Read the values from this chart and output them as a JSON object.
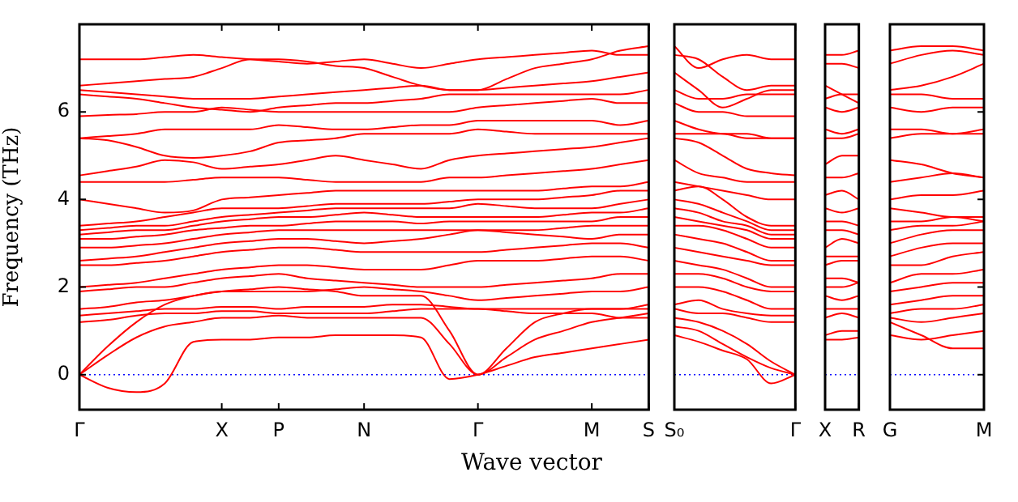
{
  "chart_data": [
    {
      "type": "line",
      "color": "#ff0000",
      "ylabel": "Frequency (THz)",
      "xlabel": "Wave vector",
      "categories": [
        "Γ",
        null,
        null,
        null,
        null,
        "X",
        null,
        "P",
        null,
        null,
        "N",
        null,
        null,
        null,
        "Γ",
        null,
        null,
        null,
        "M",
        null,
        "S"
      ],
      "ylim": [
        -0.8,
        8.0
      ],
      "yticks": [
        0,
        2,
        4,
        6
      ],
      "ref_lines": [
        {
          "axis": "y",
          "value": 0,
          "color": "#0000ff",
          "line_style": "dotted"
        }
      ],
      "series": [
        {
          "values": [
            0,
            -0.3,
            -0.4,
            -0.2,
            0.75,
            0.8,
            0.8,
            0.85,
            0.85,
            0.9,
            0.9,
            0.9,
            0.85,
            -0.1,
            0,
            0.2,
            0.4,
            0.5,
            0.6,
            0.7,
            0.8
          ]
        },
        {
          "values": [
            0,
            0.45,
            0.85,
            1.1,
            1.2,
            1.3,
            1.3,
            1.35,
            1.3,
            1.3,
            1.3,
            1.3,
            1.3,
            0.7,
            0,
            0.4,
            0.8,
            1.0,
            1.2,
            1.3,
            1.4
          ]
        },
        {
          "values": [
            0,
            0.65,
            1.2,
            1.6,
            1.8,
            1.9,
            1.95,
            2.0,
            1.95,
            1.9,
            1.8,
            1.8,
            1.8,
            1.0,
            0,
            0.6,
            1.2,
            1.4,
            1.5,
            1.5,
            1.6
          ]
        },
        {
          "values": [
            1.2,
            1.25,
            1.35,
            1.4,
            1.4,
            1.45,
            1.45,
            1.4,
            1.4,
            1.4,
            1.4,
            1.45,
            1.5,
            1.5,
            1.5,
            1.45,
            1.4,
            1.4,
            1.4,
            1.3,
            1.3
          ]
        },
        {
          "values": [
            1.35,
            1.4,
            1.45,
            1.5,
            1.5,
            1.55,
            1.55,
            1.5,
            1.55,
            1.55,
            1.55,
            1.6,
            1.6,
            1.55,
            1.5,
            1.5,
            1.5,
            1.5,
            1.5,
            1.5,
            1.5
          ]
        },
        {
          "values": [
            1.5,
            1.55,
            1.65,
            1.7,
            1.8,
            1.9,
            1.9,
            1.9,
            1.9,
            1.95,
            2.0,
            1.95,
            1.9,
            1.8,
            1.7,
            1.75,
            1.8,
            1.85,
            1.9,
            1.9,
            2.0
          ]
        },
        {
          "values": [
            1.9,
            1.95,
            2.0,
            2.0,
            2.1,
            2.2,
            2.25,
            2.3,
            2.2,
            2.15,
            2.1,
            2.05,
            2.0,
            2.0,
            2.0,
            2.05,
            2.1,
            2.15,
            2.2,
            2.3,
            2.3
          ]
        },
        {
          "values": [
            2.0,
            2.05,
            2.1,
            2.2,
            2.3,
            2.4,
            2.45,
            2.5,
            2.5,
            2.45,
            2.4,
            2.4,
            2.4,
            2.5,
            2.6,
            2.6,
            2.6,
            2.65,
            2.7,
            2.7,
            2.6
          ]
        },
        {
          "values": [
            2.5,
            2.5,
            2.55,
            2.6,
            2.7,
            2.8,
            2.85,
            2.9,
            2.9,
            2.85,
            2.8,
            2.8,
            2.8,
            2.8,
            2.8,
            2.85,
            2.9,
            2.95,
            3.0,
            3.0,
            2.9
          ]
        },
        {
          "values": [
            2.6,
            2.65,
            2.7,
            2.8,
            2.9,
            3.0,
            3.05,
            3.1,
            3.1,
            3.05,
            3.0,
            3.05,
            3.1,
            3.2,
            3.3,
            3.25,
            3.2,
            3.15,
            3.1,
            3.2,
            3.2
          ]
        },
        {
          "values": [
            2.9,
            2.9,
            2.95,
            3.0,
            3.1,
            3.2,
            3.25,
            3.3,
            3.3,
            3.3,
            3.3,
            3.3,
            3.3,
            3.3,
            3.3,
            3.3,
            3.3,
            3.35,
            3.4,
            3.4,
            3.4
          ]
        },
        {
          "values": [
            3.1,
            3.1,
            3.15,
            3.2,
            3.3,
            3.35,
            3.4,
            3.4,
            3.45,
            3.5,
            3.5,
            3.5,
            3.45,
            3.5,
            3.5,
            3.5,
            3.5,
            3.5,
            3.5,
            3.6,
            3.6
          ]
        },
        {
          "values": [
            3.2,
            3.25,
            3.3,
            3.3,
            3.4,
            3.5,
            3.55,
            3.6,
            3.6,
            3.65,
            3.7,
            3.65,
            3.6,
            3.6,
            3.6,
            3.6,
            3.6,
            3.65,
            3.7,
            3.7,
            3.8
          ]
        },
        {
          "values": [
            3.3,
            3.35,
            3.4,
            3.4,
            3.5,
            3.6,
            3.65,
            3.7,
            3.75,
            3.8,
            3.8,
            3.8,
            3.8,
            3.8,
            3.9,
            3.85,
            3.8,
            3.8,
            3.8,
            3.9,
            4.0
          ]
        },
        {
          "values": [
            3.4,
            3.45,
            3.5,
            3.6,
            3.7,
            3.8,
            3.8,
            3.8,
            3.85,
            3.9,
            3.9,
            3.9,
            3.9,
            3.95,
            4.0,
            4.0,
            4.0,
            4.05,
            4.1,
            4.2,
            4.2
          ]
        },
        {
          "values": [
            4.0,
            3.9,
            3.8,
            3.7,
            3.75,
            4.0,
            4.05,
            4.1,
            4.15,
            4.2,
            4.2,
            4.2,
            4.2,
            4.2,
            4.2,
            4.2,
            4.2,
            4.25,
            4.3,
            4.3,
            4.4
          ]
        },
        {
          "values": [
            4.4,
            4.4,
            4.4,
            4.4,
            4.45,
            4.5,
            4.5,
            4.5,
            4.45,
            4.4,
            4.4,
            4.4,
            4.4,
            4.5,
            4.5,
            4.55,
            4.6,
            4.65,
            4.7,
            4.8,
            4.9
          ]
        },
        {
          "values": [
            4.55,
            4.65,
            4.75,
            4.9,
            4.85,
            4.7,
            4.75,
            4.8,
            4.9,
            5.0,
            4.9,
            4.8,
            4.7,
            4.9,
            5.0,
            5.05,
            5.1,
            5.15,
            5.2,
            5.3,
            5.4
          ]
        },
        {
          "values": [
            5.4,
            5.35,
            5.2,
            5.0,
            4.95,
            5.0,
            5.1,
            5.3,
            5.35,
            5.4,
            5.5,
            5.5,
            5.5,
            5.5,
            5.6,
            5.55,
            5.5,
            5.5,
            5.5,
            5.5,
            5.5
          ]
        },
        {
          "values": [
            5.4,
            5.45,
            5.5,
            5.6,
            5.6,
            5.6,
            5.6,
            5.7,
            5.65,
            5.6,
            5.6,
            5.65,
            5.7,
            5.7,
            5.8,
            5.8,
            5.8,
            5.8,
            5.8,
            5.7,
            5.8
          ]
        },
        {
          "values": [
            5.9,
            5.93,
            5.95,
            6.0,
            6.0,
            6.1,
            6.05,
            6.0,
            6.0,
            6.0,
            6.0,
            6.0,
            6.0,
            6.0,
            6.1,
            6.15,
            6.2,
            6.25,
            6.3,
            6.2,
            6.2
          ]
        },
        {
          "values": [
            6.4,
            6.35,
            6.3,
            6.2,
            6.1,
            6.05,
            6.0,
            6.1,
            6.15,
            6.2,
            6.2,
            6.25,
            6.3,
            6.4,
            6.4,
            6.4,
            6.4,
            6.4,
            6.4,
            6.4,
            6.5
          ]
        },
        {
          "values": [
            6.5,
            6.45,
            6.4,
            6.35,
            6.3,
            6.3,
            6.3,
            6.35,
            6.4,
            6.45,
            6.5,
            6.55,
            6.6,
            6.5,
            6.5,
            6.55,
            6.6,
            6.65,
            6.7,
            6.8,
            6.9
          ]
        },
        {
          "values": [
            7.2,
            7.2,
            7.2,
            7.25,
            7.3,
            7.25,
            7.2,
            7.15,
            7.1,
            7.15,
            7.2,
            7.1,
            7.0,
            7.1,
            7.2,
            7.25,
            7.3,
            7.35,
            7.4,
            7.3,
            7.3
          ]
        },
        {
          "values": [
            6.6,
            6.65,
            6.7,
            6.75,
            6.8,
            7.0,
            7.2,
            7.2,
            7.15,
            7.05,
            7.0,
            6.8,
            6.6,
            6.5,
            6.5,
            6.75,
            7.0,
            7.1,
            7.2,
            7.4,
            7.5
          ]
        }
      ]
    },
    {
      "type": "line",
      "color": "#ff0000",
      "tick_labels": "x",
      "categories": [
        "S₀",
        null,
        null,
        null,
        null,
        "Γ"
      ],
      "ylim": [
        -0.8,
        8.0
      ],
      "yticks": [
        0,
        2,
        4,
        6
      ],
      "ref_lines": [
        {
          "axis": "y",
          "value": 0,
          "color": "#0000ff",
          "line_style": "dotted"
        }
      ],
      "series": [
        {
          "values": [
            0.9,
            0.75,
            0.55,
            0.35,
            -0.2,
            0
          ]
        },
        {
          "values": [
            1.1,
            1.0,
            0.7,
            0.4,
            0.15,
            0
          ]
        },
        {
          "values": [
            1.3,
            1.2,
            1.0,
            0.7,
            0.3,
            0
          ]
        },
        {
          "values": [
            1.5,
            1.4,
            1.4,
            1.3,
            1.2,
            1.2
          ]
        },
        {
          "values": [
            1.6,
            1.7,
            1.5,
            1.4,
            1.35,
            1.35
          ]
        },
        {
          "values": [
            2.0,
            2.0,
            1.9,
            1.7,
            1.5,
            1.5
          ]
        },
        {
          "values": [
            2.3,
            2.3,
            2.2,
            2.0,
            1.9,
            1.9
          ]
        },
        {
          "values": [
            2.6,
            2.5,
            2.4,
            2.2,
            2.0,
            2.0
          ]
        },
        {
          "values": [
            2.9,
            2.8,
            2.7,
            2.6,
            2.5,
            2.5
          ]
        },
        {
          "values": [
            3.2,
            3.1,
            3.0,
            2.8,
            2.6,
            2.6
          ]
        },
        {
          "values": [
            3.4,
            3.4,
            3.3,
            3.1,
            2.9,
            2.9
          ]
        },
        {
          "values": [
            3.6,
            3.5,
            3.4,
            3.3,
            3.1,
            3.1
          ]
        },
        {
          "values": [
            3.8,
            3.7,
            3.5,
            3.4,
            3.2,
            3.2
          ]
        },
        {
          "values": [
            4.0,
            3.9,
            3.7,
            3.5,
            3.3,
            3.3
          ]
        },
        {
          "values": [
            4.2,
            4.3,
            4.0,
            3.6,
            3.4,
            3.4
          ]
        },
        {
          "values": [
            4.4,
            4.3,
            4.2,
            4.1,
            4.0,
            4.0
          ]
        },
        {
          "values": [
            4.9,
            4.6,
            4.5,
            4.4,
            4.4,
            4.4
          ]
        },
        {
          "values": [
            5.4,
            5.3,
            5.0,
            4.7,
            4.6,
            4.55
          ]
        },
        {
          "values": [
            5.5,
            5.5,
            5.5,
            5.4,
            5.4,
            5.4
          ]
        },
        {
          "values": [
            5.8,
            5.6,
            5.5,
            5.5,
            5.4,
            5.4
          ]
        },
        {
          "values": [
            6.2,
            6.0,
            6.0,
            5.9,
            5.9,
            5.9
          ]
        },
        {
          "values": [
            6.5,
            6.3,
            6.3,
            6.4,
            6.4,
            6.4
          ]
        },
        {
          "values": [
            6.9,
            6.5,
            6.1,
            6.3,
            6.5,
            6.5
          ]
        },
        {
          "values": [
            7.3,
            7.2,
            6.8,
            6.5,
            6.6,
            6.6
          ]
        },
        {
          "values": [
            7.5,
            7.0,
            7.2,
            7.3,
            7.2,
            7.2
          ]
        }
      ]
    },
    {
      "type": "line",
      "color": "#ff0000",
      "tick_labels": "x",
      "categories": [
        "X",
        null,
        "R"
      ],
      "ylim": [
        -0.8,
        8.0
      ],
      "yticks": [
        0,
        2,
        4,
        6
      ],
      "ref_lines": [
        {
          "axis": "y",
          "value": 0,
          "color": "#0000ff",
          "line_style": "dotted"
        }
      ],
      "series": [
        {
          "values": [
            0.8,
            0.8,
            0.85
          ]
        },
        {
          "values": [
            0.9,
            1.0,
            1.0
          ]
        },
        {
          "values": [
            1.3,
            1.4,
            1.3
          ]
        },
        {
          "values": [
            1.5,
            1.5,
            1.5
          ]
        },
        {
          "values": [
            1.8,
            1.7,
            1.8
          ]
        },
        {
          "values": [
            2.0,
            2.0,
            2.1
          ]
        },
        {
          "values": [
            2.2,
            2.2,
            2.1
          ]
        },
        {
          "values": [
            2.5,
            2.6,
            2.6
          ]
        },
        {
          "values": [
            2.7,
            2.7,
            2.7
          ]
        },
        {
          "values": [
            2.9,
            3.1,
            3.0
          ]
        },
        {
          "values": [
            3.3,
            3.3,
            3.2
          ]
        },
        {
          "values": [
            3.5,
            3.5,
            3.4
          ]
        },
        {
          "values": [
            3.8,
            3.7,
            3.8
          ]
        },
        {
          "values": [
            4.1,
            4.2,
            4.0
          ]
        },
        {
          "values": [
            4.5,
            4.5,
            4.6
          ]
        },
        {
          "values": [
            4.8,
            5.0,
            5.0
          ]
        },
        {
          "values": [
            5.4,
            5.4,
            5.5
          ]
        },
        {
          "values": [
            5.6,
            5.5,
            5.6
          ]
        },
        {
          "values": [
            6.1,
            6.0,
            6.1
          ]
        },
        {
          "values": [
            6.3,
            6.4,
            6.4
          ]
        },
        {
          "values": [
            6.6,
            6.4,
            6.2
          ]
        },
        {
          "values": [
            7.1,
            7.1,
            7.0
          ]
        },
        {
          "values": [
            7.3,
            7.3,
            7.4
          ]
        }
      ]
    },
    {
      "type": "line",
      "color": "#ff0000",
      "tick_labels": "x",
      "categories": [
        "G",
        null,
        null,
        "M"
      ],
      "ylim": [
        -0.8,
        8.0
      ],
      "yticks": [
        0,
        2,
        4,
        6
      ],
      "ref_lines": [
        {
          "axis": "y",
          "value": 0,
          "color": "#0000ff",
          "line_style": "dotted"
        }
      ],
      "series": [
        {
          "values": [
            1.2,
            0.9,
            0.6,
            0.6
          ]
        },
        {
          "values": [
            0.9,
            0.8,
            0.9,
            1.0
          ]
        },
        {
          "values": [
            1.3,
            1.2,
            1.3,
            1.4
          ]
        },
        {
          "values": [
            1.4,
            1.5,
            1.5,
            1.6
          ]
        },
        {
          "values": [
            1.6,
            1.7,
            1.8,
            1.8
          ]
        },
        {
          "values": [
            1.9,
            2.0,
            2.1,
            2.1
          ]
        },
        {
          "values": [
            2.1,
            2.3,
            2.3,
            2.4
          ]
        },
        {
          "values": [
            2.5,
            2.5,
            2.7,
            2.8
          ]
        },
        {
          "values": [
            2.7,
            2.9,
            3.0,
            3.0
          ]
        },
        {
          "values": [
            3.0,
            3.2,
            3.3,
            3.3
          ]
        },
        {
          "values": [
            3.3,
            3.4,
            3.4,
            3.5
          ]
        },
        {
          "values": [
            3.5,
            3.5,
            3.6,
            3.5
          ]
        },
        {
          "values": [
            3.8,
            3.7,
            3.6,
            3.6
          ]
        },
        {
          "values": [
            4.0,
            4.1,
            4.1,
            4.2
          ]
        },
        {
          "values": [
            4.4,
            4.5,
            4.6,
            4.5
          ]
        },
        {
          "values": [
            4.9,
            4.8,
            4.6,
            4.5
          ]
        },
        {
          "values": [
            5.4,
            5.5,
            5.5,
            5.5
          ]
        },
        {
          "values": [
            5.6,
            5.6,
            5.5,
            5.6
          ]
        },
        {
          "values": [
            6.1,
            6.0,
            6.1,
            6.1
          ]
        },
        {
          "values": [
            6.4,
            6.4,
            6.3,
            6.3
          ]
        },
        {
          "values": [
            6.5,
            6.6,
            6.8,
            7.1
          ]
        },
        {
          "values": [
            7.1,
            7.3,
            7.4,
            7.3
          ]
        },
        {
          "values": [
            7.4,
            7.5,
            7.5,
            7.4
          ]
        }
      ]
    }
  ]
}
